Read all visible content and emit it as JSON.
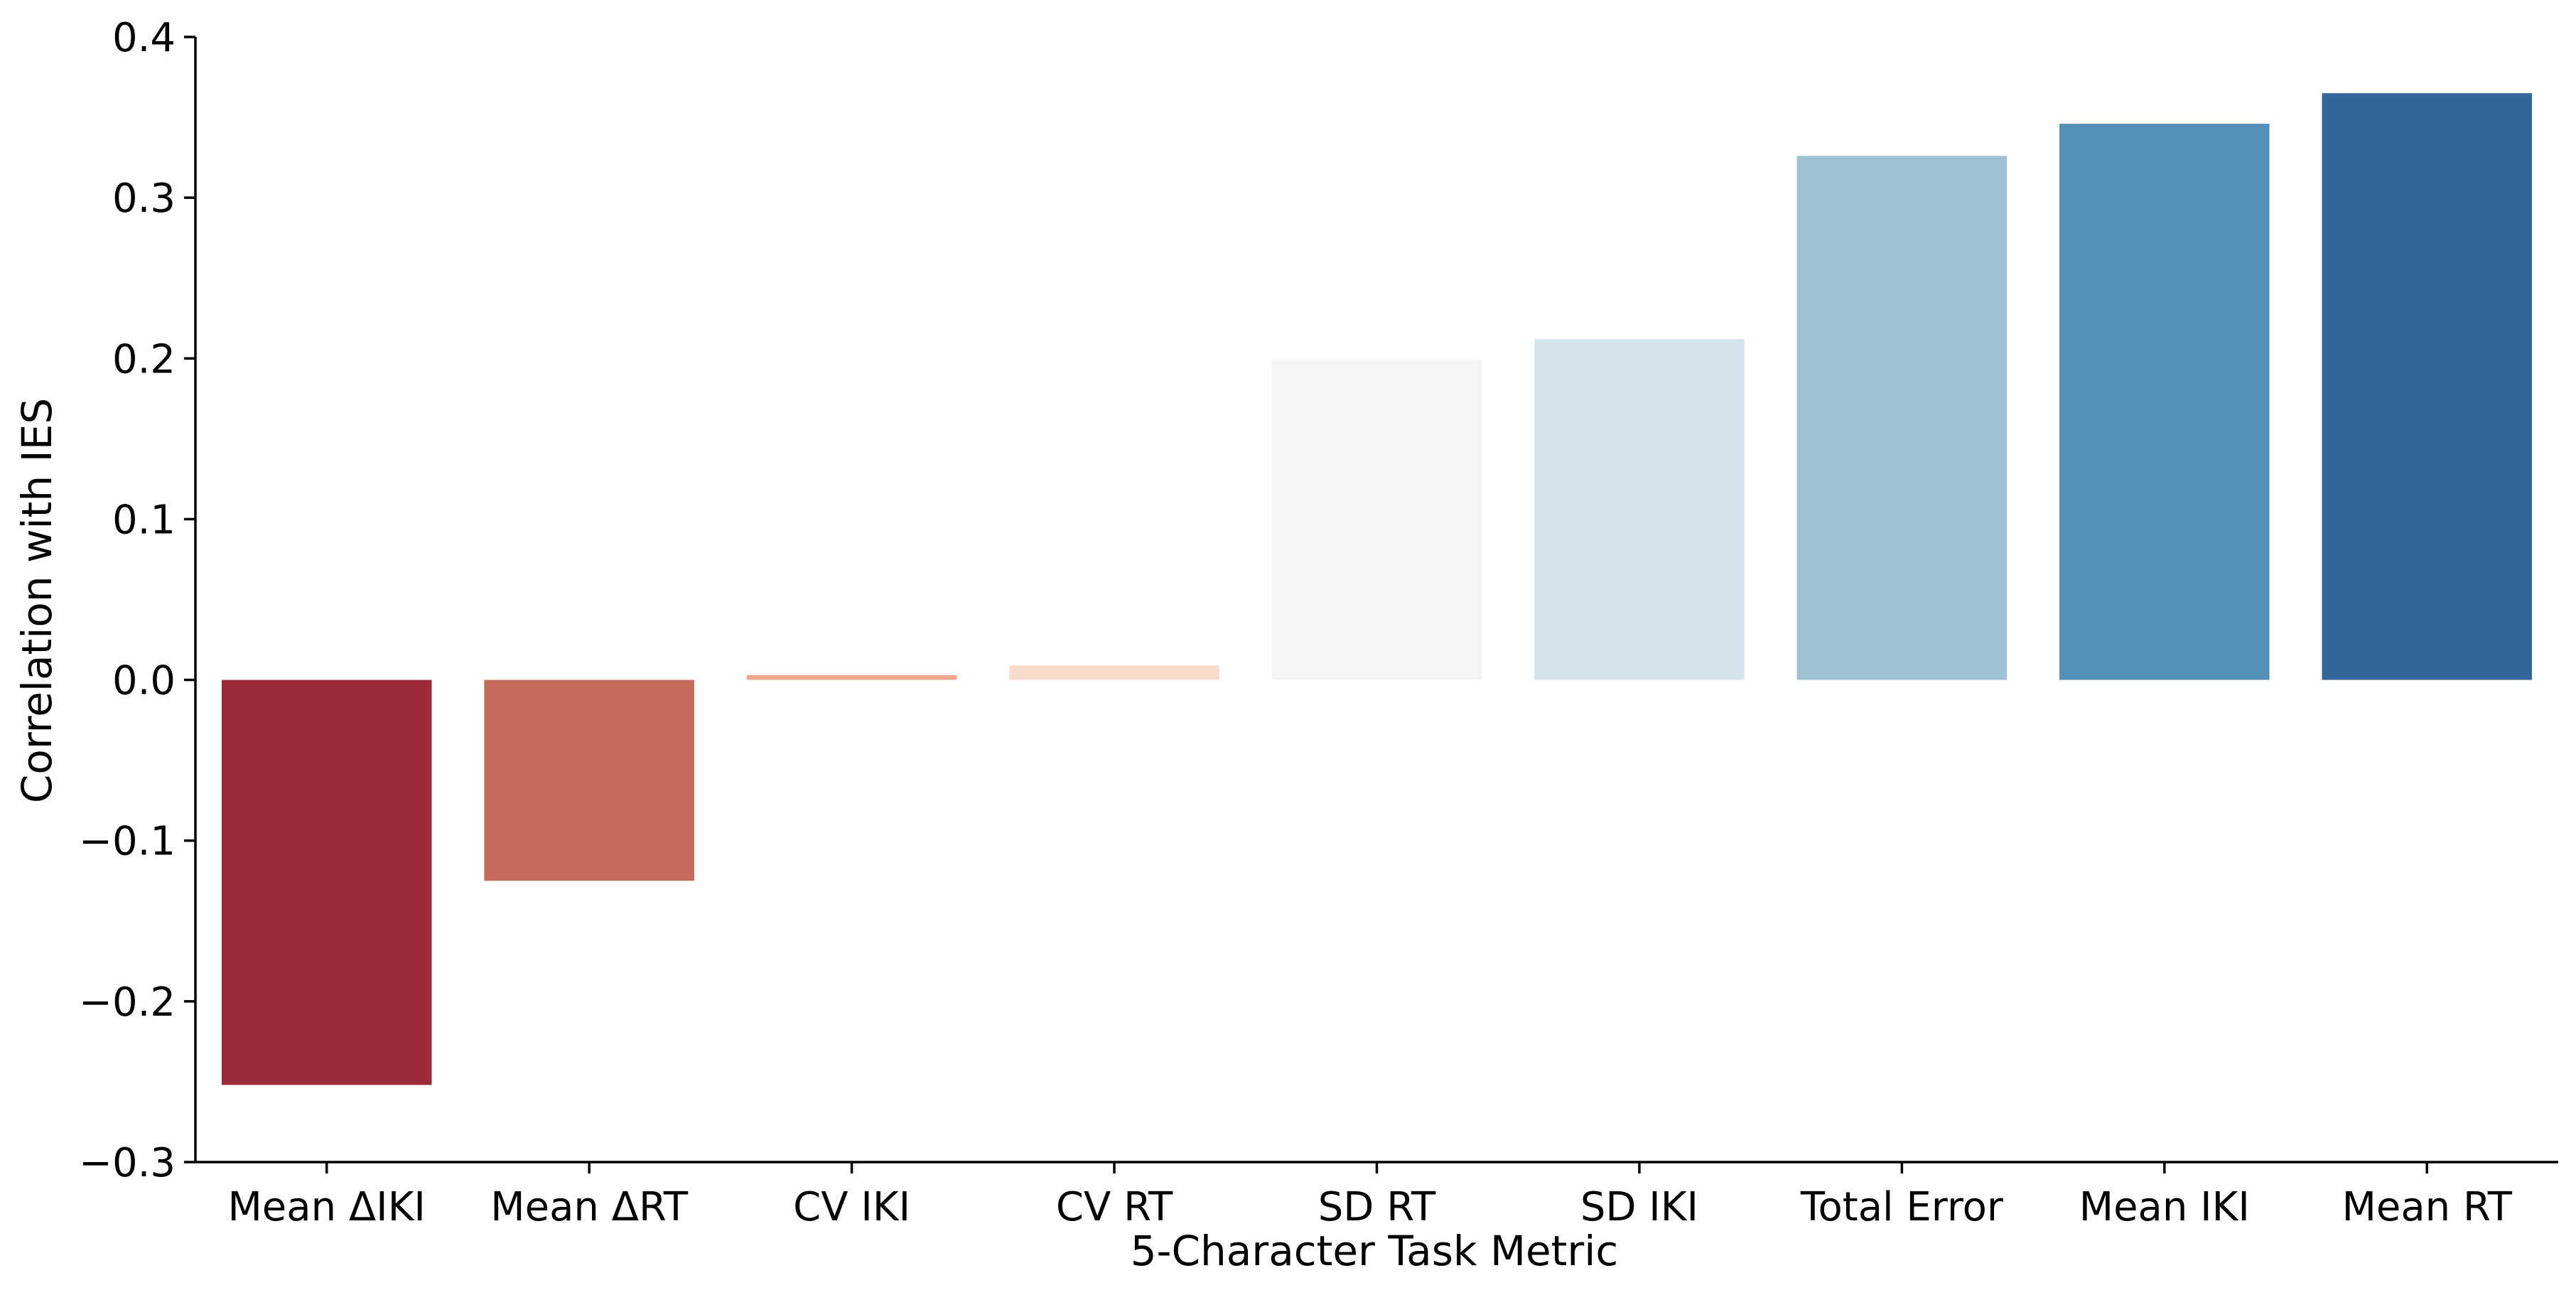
{
  "chart_data": {
    "type": "bar",
    "title": "",
    "xlabel": "5-Character Task Metric",
    "ylabel": "Correlation with IES",
    "ylim": [
      -0.3,
      0.4
    ],
    "yticks": [
      -0.3,
      -0.2,
      -0.1,
      0.0,
      0.1,
      0.2,
      0.3,
      0.4
    ],
    "ytick_labels": [
      "−0.3",
      "−0.2",
      "−0.1",
      "0.0",
      "0.1",
      "0.2",
      "0.3",
      "0.4"
    ],
    "categories": [
      "Mean ΔIKI",
      "Mean ΔRT",
      "CV IKI",
      "CV RT",
      "SD RT",
      "SD IKI",
      "Total Error",
      "Mean IKI",
      "Mean RT"
    ],
    "values": [
      -0.252,
      -0.125,
      0.003,
      0.009,
      0.199,
      0.212,
      0.326,
      0.346,
      0.365
    ],
    "colors": [
      "#9b2a3a",
      "#c46b5c",
      "#eba88d",
      "#f6dccd",
      "#f3f6f5",
      "#d5e4ec",
      "#9ec2d4",
      "#5490b5",
      "#336699"
    ],
    "grid": false,
    "legend": "none"
  }
}
